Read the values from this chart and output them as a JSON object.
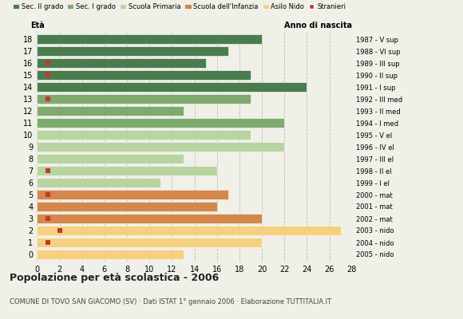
{
  "ages": [
    18,
    17,
    16,
    15,
    14,
    13,
    12,
    11,
    10,
    9,
    8,
    7,
    6,
    5,
    4,
    3,
    2,
    1,
    0
  ],
  "years": [
    "1987 - V sup",
    "1988 - VI sup",
    "1989 - III sup",
    "1990 - II sup",
    "1991 - I sup",
    "1992 - III med",
    "1993 - II med",
    "1994 - I med",
    "1995 - V el",
    "1996 - IV el",
    "1997 - III el",
    "1998 - II el",
    "1999 - I el",
    "2000 - mat",
    "2001 - mat",
    "2002 - mat",
    "2003 - nido",
    "2004 - nido",
    "2005 - nido"
  ],
  "values": [
    20,
    17,
    15,
    19,
    24,
    19,
    13,
    22,
    19,
    22,
    13,
    16,
    11,
    17,
    16,
    20,
    27,
    20,
    13
  ],
  "stranieri": [
    0,
    0,
    1,
    1,
    0,
    1,
    0,
    0,
    0,
    0,
    0,
    1,
    0,
    1,
    0,
    1,
    2,
    1,
    0
  ],
  "school_colors": {
    "sec2": "#4a7c4e",
    "sec1": "#7faa6e",
    "primaria": "#b8d4a0",
    "infanzia": "#d4874a",
    "nido": "#f5d080"
  },
  "legend_labels": [
    "Sec. II grado",
    "Sec. I grado",
    "Scuola Primaria",
    "Scuola dell'Infanzia",
    "Asilo Nido",
    "Stranieri"
  ],
  "legend_colors": [
    "#4a7c4e",
    "#7faa6e",
    "#b8d4a0",
    "#d4874a",
    "#f5d080",
    "#c0392b"
  ],
  "title": "Popolazione per età scolastica - 2006",
  "subtitle": "COMUNE DI TOVO SAN GIACOMO (SV) · Dati ISTAT 1° gennaio 2006 · Elaborazione TUTTITALIA.IT",
  "xlabel_eta": "Età",
  "xlabel_anno": "Anno di nascita",
  "xlim": [
    0,
    28
  ],
  "xticks": [
    0,
    2,
    4,
    6,
    8,
    10,
    12,
    14,
    16,
    18,
    20,
    22,
    24,
    26,
    28
  ],
  "bar_height": 0.75,
  "stranieri_color": "#c0392b",
  "stranieri_size": 4,
  "background_color": "#f0f0e8",
  "grid_color": "#bbbbbb"
}
